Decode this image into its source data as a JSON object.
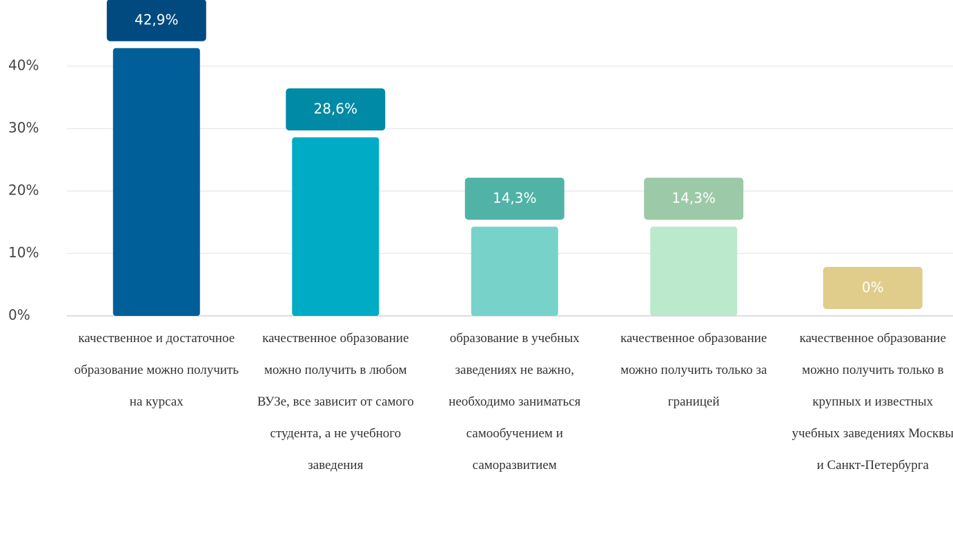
{
  "chart_data": {
    "type": "bar",
    "categories": [
      "качественное и достаточное образование можно получить на курсах",
      "качественное образование можно получить в любом ВУЗе, все зависит от самого студента, а не учебного заведения",
      "образование в учебных заведениях не важно, необходимо заниматься самообучением и саморазвитием",
      "качественное образование можно получить только за границей",
      "качественное образование можно получить только в крупных и известных учебных заведениях Москвы и Санкт-Петербурга"
    ],
    "values": [
      42.9,
      28.6,
      14.3,
      14.3,
      0
    ],
    "value_labels": [
      "42,9%",
      "28,6%",
      "14,3%",
      "14,3%",
      "0%"
    ],
    "colors": [
      "#005f99",
      "#00abc6",
      "#77d3c9",
      "#bbe9cb",
      "#e6d79a"
    ],
    "label_colors": [
      "#004a80",
      "#008aa5",
      "#50b3a6",
      "#9ccaa8",
      "#e0cd8c"
    ],
    "ylim": [
      0,
      40
    ],
    "yticks": [
      {
        "value": 0,
        "label": "0%"
      },
      {
        "value": 10,
        "label": "10%"
      },
      {
        "value": 20,
        "label": "20%"
      },
      {
        "value": 30,
        "label": "30%"
      },
      {
        "value": 40,
        "label": "40%"
      }
    ],
    "grid": true
  }
}
